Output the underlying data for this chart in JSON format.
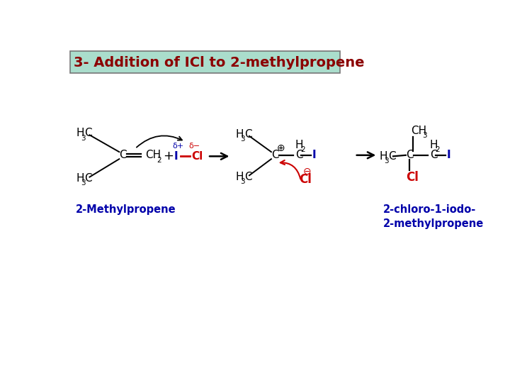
{
  "title": "3- Addition of ICl to 2-methylpropene",
  "title_color": "#8b0000",
  "title_bg": "#aaddcc",
  "title_border": "#888888",
  "bg_color": "#ffffff",
  "label1": "2-Methylpropene",
  "label2": "2-chloro-1-iodo-\n2-methylpropene",
  "label_color": "#0000cc",
  "black": "#000000",
  "red": "#cc0000",
  "blue": "#0000aa"
}
